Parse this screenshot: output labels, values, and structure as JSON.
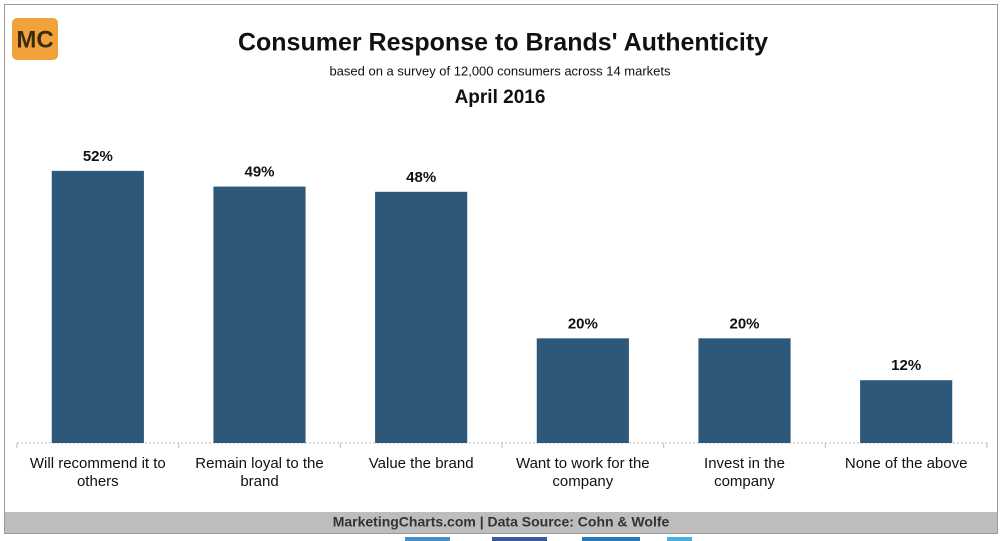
{
  "chart_data": {
    "type": "bar",
    "title": "Consumer Response to Brands' Authenticity",
    "subtitle": "based on a survey of 12,000 consumers across 14 markets",
    "date": "April 2016",
    "logo": "MC",
    "source": "MarketingCharts.com | Data Source: Cohn & Wolfe",
    "categories": [
      "Will recommend it to others",
      "Remain loyal to the brand",
      "Value the brand",
      "Want to work for the company",
      "Invest in the company",
      "None of the above"
    ],
    "values": [
      52,
      49,
      48,
      20,
      20,
      12
    ],
    "value_labels": [
      "52%",
      "49%",
      "48%",
      "20%",
      "20%",
      "12%"
    ],
    "color": "#2d5879",
    "ylim": [
      0,
      60
    ]
  }
}
